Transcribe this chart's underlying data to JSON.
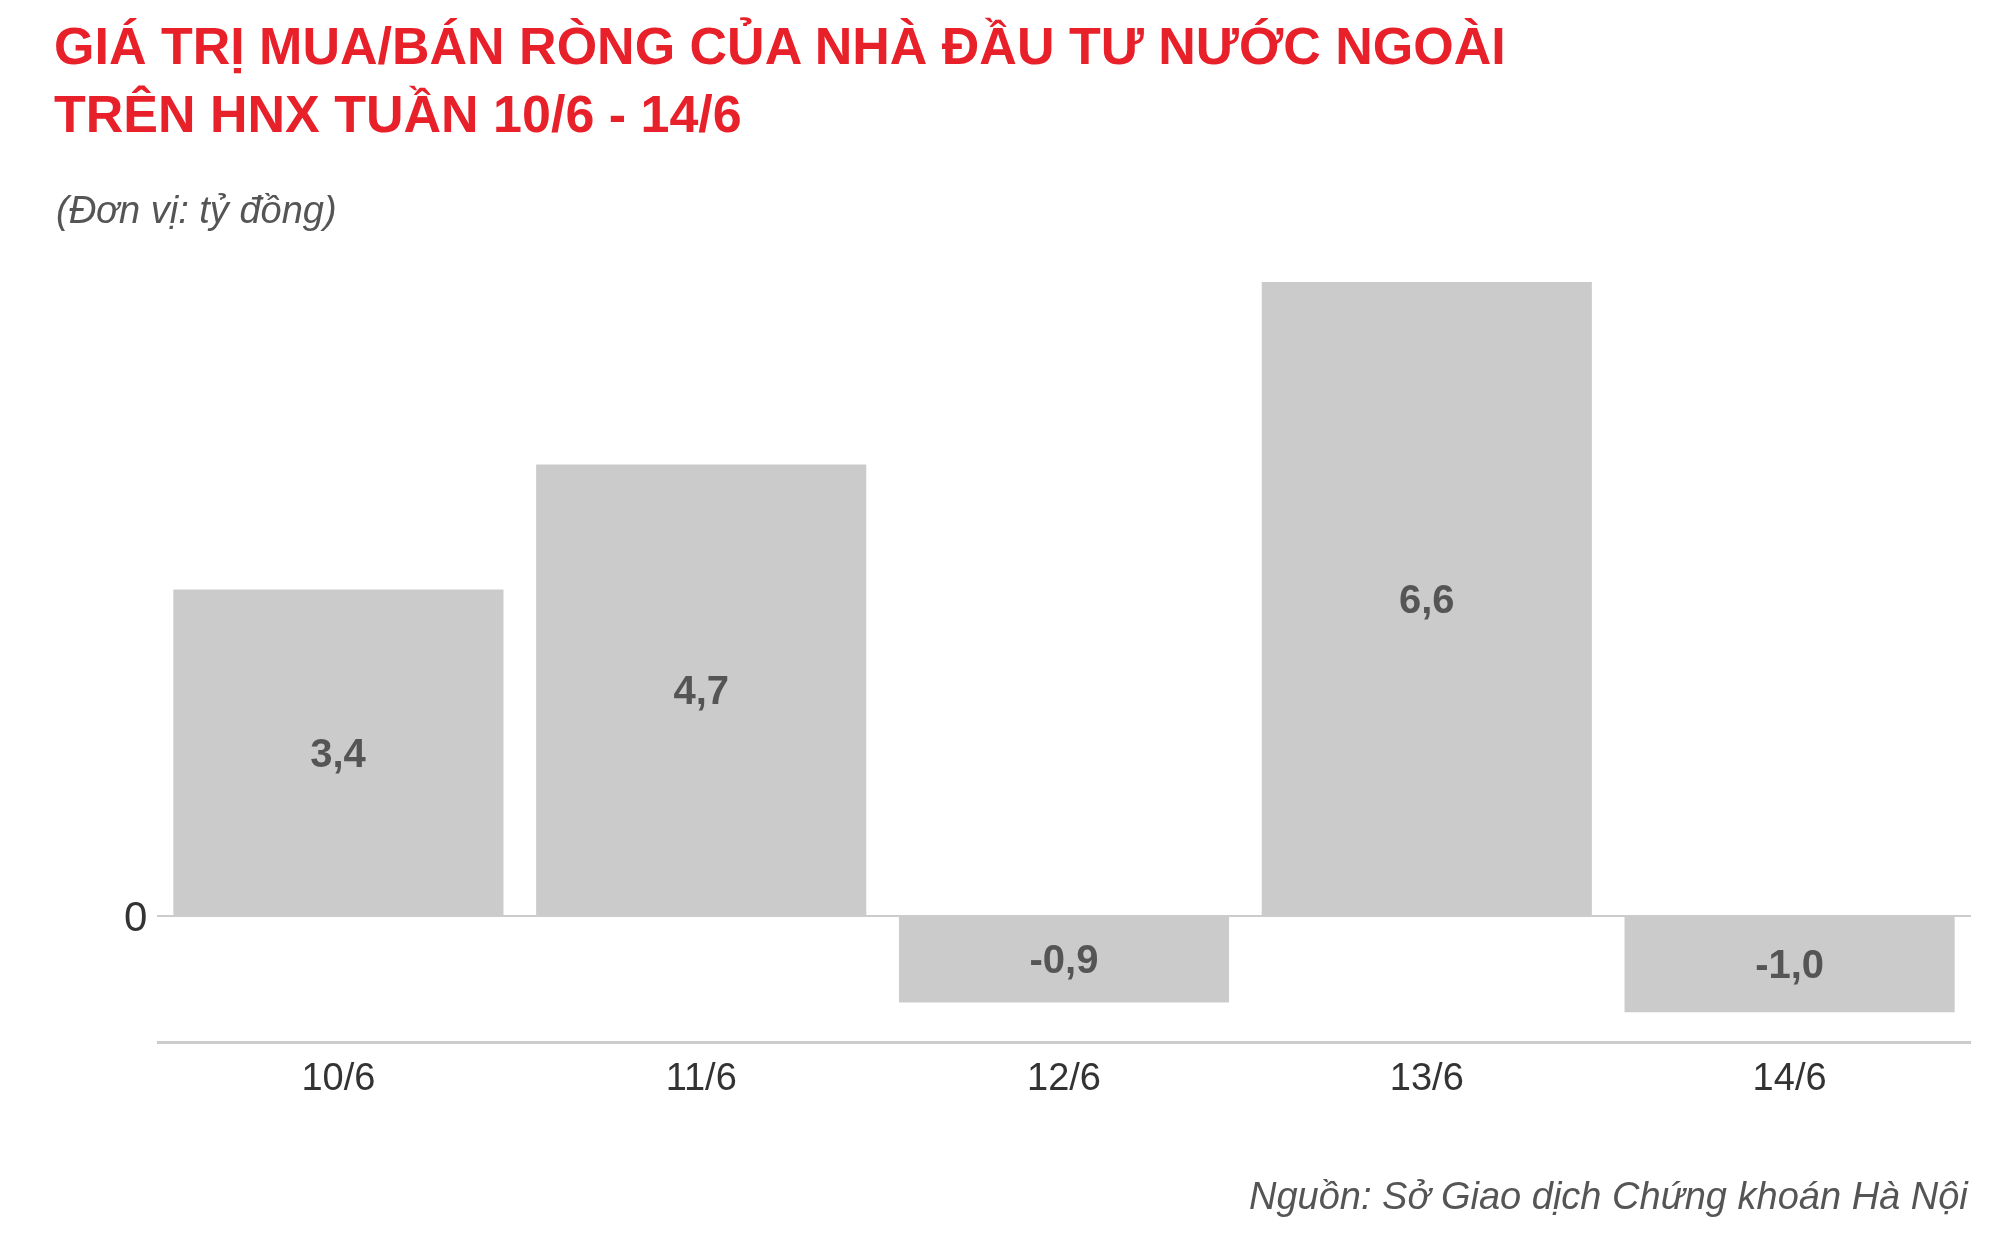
{
  "chart_data": {
    "type": "bar",
    "title": "GIÁ TRỊ MUA/BÁN RÒNG CỦA NHÀ ĐẦU TƯ NƯỚC NGOÀI\nTRÊN HNX TUẦN 10/6 - 14/6",
    "subtitle": "(Đơn vị: tỷ đồng)",
    "categories": [
      "10/6",
      "11/6",
      "12/6",
      "13/6",
      "14/6"
    ],
    "values": [
      3.4,
      4.7,
      -0.9,
      6.6,
      -1.0
    ],
    "value_labels": [
      "3,4",
      "4,7",
      "-0,9",
      "6,6",
      "-1,0"
    ],
    "color": "#cccbcb",
    "annotations": [
      "0",
      "Nguồn: Sở Giao dịch Chứng khoán Hà Nội"
    ]
  }
}
